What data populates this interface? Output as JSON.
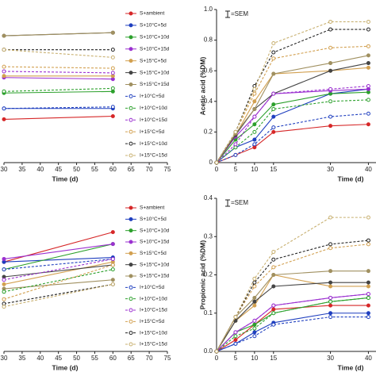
{
  "chart_data": [
    {
      "type": "line",
      "x_label": "Time (d)",
      "x": [
        30,
        60
      ],
      "xlim": [
        30,
        75
      ],
      "xticks": [
        30,
        35,
        40,
        45,
        50,
        55,
        60,
        65,
        70,
        75
      ],
      "ylim": [
        0,
        1
      ],
      "series": [
        {
          "color": "#d62728",
          "style": "solid",
          "values": [
            0.28,
            0.3
          ]
        },
        {
          "color": "#1f3fbf",
          "style": "solid",
          "values": [
            0.35,
            0.35
          ]
        },
        {
          "color": "#2ca02c",
          "style": "solid",
          "values": [
            0.45,
            0.46
          ]
        },
        {
          "color": "#9b30d0",
          "style": "solid",
          "values": [
            0.55,
            0.54
          ]
        },
        {
          "color": "#d2a050",
          "style": "solid",
          "values": [
            0.56,
            0.56
          ]
        },
        {
          "color": "#444444",
          "style": "solid",
          "values": [
            0.82,
            0.84
          ]
        },
        {
          "color": "#a09060",
          "style": "solid",
          "values": [
            0.82,
            0.84
          ]
        },
        {
          "color": "#1f3fbf",
          "style": "dashed",
          "values": [
            0.35,
            0.36
          ]
        },
        {
          "color": "#2ca02c",
          "style": "dashed",
          "values": [
            0.46,
            0.48
          ]
        },
        {
          "color": "#9b30d0",
          "style": "dashed",
          "values": [
            0.59,
            0.58
          ]
        },
        {
          "color": "#d2a050",
          "style": "dashed",
          "values": [
            0.62,
            0.61
          ]
        },
        {
          "color": "#222222",
          "style": "dashed",
          "values": [
            0.73,
            0.73
          ]
        },
        {
          "color": "#c8b070",
          "style": "dashed",
          "values": [
            0.73,
            0.68
          ]
        }
      ]
    },
    {
      "type": "line",
      "y_label": "Acetic acid (%DM)",
      "x_label": "Time (d)",
      "annotation": "=SEM",
      "x": [
        0,
        5,
        10,
        15,
        30,
        40
      ],
      "xlim": [
        0,
        42
      ],
      "xticks": [
        0,
        5,
        10,
        15,
        30,
        40
      ],
      "ylim": [
        0,
        1
      ],
      "yticks": [
        0,
        0.2,
        0.4,
        0.6,
        0.8,
        {
          "value": 1,
          "label": "1.0"
        }
      ],
      "series": [
        {
          "name": "S+ambient",
          "color": "#d62728",
          "style": "solid",
          "values": [
            0,
            0.05,
            0.1,
            0.2,
            0.24,
            0.25
          ]
        },
        {
          "name": "S+10°C+5d",
          "color": "#1f3fbf",
          "style": "solid",
          "values": [
            0,
            0.1,
            0.15,
            0.3,
            0.45,
            0.48
          ]
        },
        {
          "name": "S+10°C+10d",
          "color": "#2ca02c",
          "style": "solid",
          "values": [
            0,
            0.15,
            0.25,
            0.38,
            0.45,
            0.46
          ]
        },
        {
          "name": "S+10°C+15d",
          "color": "#9b30d0",
          "style": "solid",
          "values": [
            0,
            0.17,
            0.3,
            0.45,
            0.47,
            0.48
          ]
        },
        {
          "name": "S+15°C+5d",
          "color": "#d2a050",
          "style": "solid",
          "values": [
            0,
            0.18,
            0.4,
            0.58,
            0.6,
            0.62
          ]
        },
        {
          "name": "S+15°C+10d",
          "color": "#444444",
          "style": "solid",
          "values": [
            0,
            0.18,
            0.35,
            0.45,
            0.6,
            0.65
          ]
        },
        {
          "name": "S+15°C+15d",
          "color": "#a09060",
          "style": "solid",
          "values": [
            0,
            0.19,
            0.35,
            0.58,
            0.65,
            0.7
          ]
        },
        {
          "name": "I+10°C+5d",
          "color": "#1f3fbf",
          "style": "dashed",
          "values": [
            0,
            0.05,
            0.12,
            0.23,
            0.3,
            0.32
          ]
        },
        {
          "name": "I+10°C+10d",
          "color": "#2ca02c",
          "style": "dashed",
          "values": [
            0,
            0.1,
            0.2,
            0.35,
            0.4,
            0.41
          ]
        },
        {
          "name": "I+10°C+15d",
          "color": "#9b30d0",
          "style": "dashed",
          "values": [
            0,
            0.12,
            0.3,
            0.45,
            0.48,
            0.5
          ]
        },
        {
          "name": "I+15°C+5d",
          "color": "#d2a050",
          "style": "dashed",
          "values": [
            0,
            0.2,
            0.45,
            0.68,
            0.75,
            0.76
          ]
        },
        {
          "name": "I+15°C+10d",
          "color": "#222222",
          "style": "dashed",
          "values": [
            0,
            0.2,
            0.5,
            0.72,
            0.87,
            0.87
          ]
        },
        {
          "name": "I+15°C+15d",
          "color": "#c8b070",
          "style": "dashed",
          "values": [
            0,
            0.2,
            0.48,
            0.78,
            0.92,
            0.92
          ]
        }
      ]
    },
    {
      "type": "line",
      "x_label": "Time (d)",
      "x": [
        30,
        60
      ],
      "xlim": [
        30,
        75
      ],
      "xticks": [
        30,
        35,
        40,
        45,
        50,
        55,
        60,
        65,
        70,
        75
      ],
      "ylim": [
        0,
        1
      ],
      "series": [
        {
          "color": "#d62728",
          "style": "solid",
          "values": [
            0.6,
            0.8
          ]
        },
        {
          "color": "#1f3fbf",
          "style": "solid",
          "values": [
            0.6,
            0.63
          ]
        },
        {
          "color": "#2ca02c",
          "style": "solid",
          "values": [
            0.55,
            0.72
          ]
        },
        {
          "color": "#9b30d0",
          "style": "solid",
          "values": [
            0.62,
            0.72
          ]
        },
        {
          "color": "#d2a050",
          "style": "solid",
          "values": [
            0.45,
            0.6
          ]
        },
        {
          "color": "#444444",
          "style": "solid",
          "values": [
            0.5,
            0.58
          ]
        },
        {
          "color": "#a09060",
          "style": "solid",
          "values": [
            0.42,
            0.48
          ]
        },
        {
          "color": "#1f3fbf",
          "style": "dashed",
          "values": [
            0.55,
            0.62
          ]
        },
        {
          "color": "#2ca02c",
          "style": "dashed",
          "values": [
            0.4,
            0.55
          ]
        },
        {
          "color": "#9b30d0",
          "style": "dashed",
          "values": [
            0.48,
            0.62
          ]
        },
        {
          "color": "#d2a050",
          "style": "dashed",
          "values": [
            0.35,
            0.58
          ]
        },
        {
          "color": "#222222",
          "style": "dashed",
          "values": [
            0.32,
            0.45
          ]
        },
        {
          "color": "#c8b070",
          "style": "dashed",
          "values": [
            0.3,
            0.45
          ]
        }
      ]
    },
    {
      "type": "line",
      "y_label": "Propionic acid (%DM)",
      "x_label": "Time (d)",
      "annotation": "=SEM",
      "x": [
        0,
        5,
        10,
        15,
        30,
        40
      ],
      "xlim": [
        0,
        42
      ],
      "xticks": [
        0,
        5,
        10,
        15,
        30,
        40
      ],
      "ylim": [
        0,
        0.4
      ],
      "yticks": [
        {
          "value": 0,
          "label": "0.0"
        },
        0.1,
        0.2,
        0.3,
        0.4
      ],
      "series": [
        {
          "name": "S+ambient",
          "color": "#d62728",
          "style": "solid",
          "values": [
            0,
            0.03,
            0.07,
            0.11,
            0.12,
            0.12
          ]
        },
        {
          "name": "S+10°C+5d",
          "color": "#1f3fbf",
          "style": "solid",
          "values": [
            0,
            0.02,
            0.05,
            0.075,
            0.1,
            0.1
          ]
        },
        {
          "name": "S+10°C+10d",
          "color": "#2ca02c",
          "style": "solid",
          "values": [
            0,
            0.05,
            0.07,
            0.1,
            0.13,
            0.14
          ]
        },
        {
          "name": "S+10°C+15d",
          "color": "#9b30d0",
          "style": "solid",
          "values": [
            0,
            0.05,
            0.08,
            0.12,
            0.14,
            0.15
          ]
        },
        {
          "name": "S+15°C+5d",
          "color": "#d2a050",
          "style": "solid",
          "values": [
            0,
            0.08,
            0.12,
            0.2,
            0.17,
            0.17
          ]
        },
        {
          "name": "S+15°C+10d",
          "color": "#444444",
          "style": "solid",
          "values": [
            0,
            0.08,
            0.13,
            0.17,
            0.18,
            0.18
          ]
        },
        {
          "name": "S+15°C+15d",
          "color": "#a09060",
          "style": "solid",
          "values": [
            0,
            0.09,
            0.14,
            0.2,
            0.21,
            0.21
          ]
        },
        {
          "name": "I+10°C+5d",
          "color": "#1f3fbf",
          "style": "dashed",
          "values": [
            0,
            0.02,
            0.04,
            0.07,
            0.09,
            0.09
          ]
        },
        {
          "name": "I+10°C+10d",
          "color": "#2ca02c",
          "style": "dashed",
          "values": [
            0,
            0.04,
            0.06,
            0.1,
            0.13,
            0.14
          ]
        },
        {
          "name": "I+10°C+15d",
          "color": "#9b30d0",
          "style": "dashed",
          "values": [
            0,
            0.05,
            0.08,
            0.12,
            0.14,
            0.15
          ]
        },
        {
          "name": "I+15°C+5d",
          "color": "#d2a050",
          "style": "dashed",
          "values": [
            0,
            0.09,
            0.17,
            0.22,
            0.27,
            0.28
          ]
        },
        {
          "name": "I+15°C+10d",
          "color": "#222222",
          "style": "dashed",
          "values": [
            0,
            0.09,
            0.18,
            0.24,
            0.28,
            0.29
          ]
        },
        {
          "name": "I+15°C+15d",
          "color": "#c8b070",
          "style": "dashed",
          "values": [
            0,
            0.09,
            0.19,
            0.26,
            0.35,
            0.35
          ]
        }
      ]
    }
  ]
}
